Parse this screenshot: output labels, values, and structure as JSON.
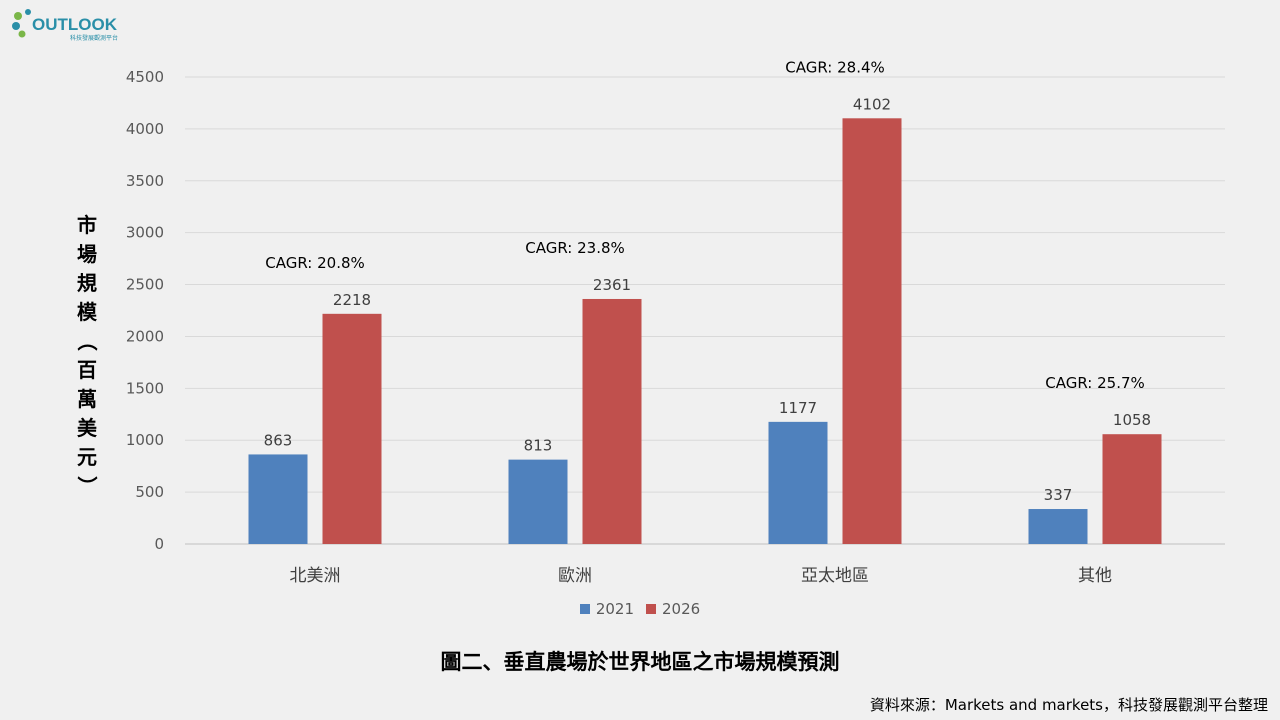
{
  "logo": {
    "text": "OUTLOOK",
    "subtext": "科技發展觀測平台"
  },
  "caption": "圖二、垂直農場於世界地區之市場規模預測",
  "source": "資料來源：Markets and markets，科技發展觀測平台整理",
  "chart_data": {
    "type": "bar",
    "categories": [
      "北美洲",
      "歐洲",
      "亞太地區",
      "其他"
    ],
    "series": [
      {
        "name": "2021",
        "color": "#4f81bd",
        "values": [
          863,
          813,
          1177,
          337
        ]
      },
      {
        "name": "2026",
        "color": "#c0504d",
        "values": [
          2218,
          2361,
          4102,
          1058
        ]
      }
    ],
    "annotations": [
      "CAGR: 20.8%",
      "CAGR: 23.8%",
      "CAGR: 28.4%",
      "CAGR: 25.7%"
    ],
    "ylabel": "市場規模（百萬美元）",
    "ylim": [
      0,
      4500
    ],
    "yticks": [
      0,
      500,
      1000,
      1500,
      2000,
      2500,
      3000,
      3500,
      4000,
      4500
    ],
    "grid": true,
    "legend_position": "bottom"
  }
}
